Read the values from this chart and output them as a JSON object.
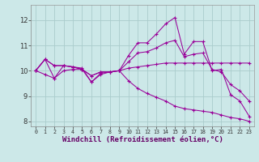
{
  "background_color": "#cce8e8",
  "grid_color": "#aacccc",
  "line_color": "#990099",
  "xlabel": "Windchill (Refroidissement éolien,°C)",
  "xlabel_fontsize": 6.5,
  "xlim": [
    -0.5,
    23.5
  ],
  "ylim": [
    7.8,
    12.6
  ],
  "yticks": [
    8,
    9,
    10,
    11,
    12
  ],
  "xticks": [
    0,
    1,
    2,
    3,
    4,
    5,
    6,
    7,
    8,
    9,
    10,
    11,
    12,
    13,
    14,
    15,
    16,
    17,
    18,
    19,
    20,
    21,
    22,
    23
  ],
  "series": [
    [
      10.0,
      10.45,
      9.7,
      10.2,
      10.15,
      10.1,
      9.55,
      9.9,
      9.95,
      10.0,
      10.6,
      11.1,
      11.1,
      11.45,
      11.85,
      12.1,
      10.65,
      11.15,
      11.15,
      10.0,
      10.05,
      9.05,
      8.8,
      8.2
    ],
    [
      10.0,
      10.45,
      10.2,
      10.2,
      10.15,
      10.05,
      9.8,
      9.95,
      9.95,
      10.0,
      10.1,
      10.15,
      10.2,
      10.25,
      10.3,
      10.3,
      10.3,
      10.3,
      10.3,
      10.3,
      10.3,
      10.3,
      10.3,
      10.3
    ],
    [
      10.0,
      10.45,
      10.2,
      10.2,
      10.15,
      10.05,
      9.8,
      9.95,
      9.95,
      10.0,
      10.35,
      10.7,
      10.75,
      10.9,
      11.1,
      11.2,
      10.55,
      10.65,
      10.7,
      10.05,
      9.95,
      9.45,
      9.2,
      8.8
    ],
    [
      10.0,
      9.85,
      9.7,
      10.0,
      10.05,
      10.05,
      9.55,
      9.85,
      9.95,
      10.0,
      9.6,
      9.3,
      9.1,
      8.95,
      8.8,
      8.6,
      8.5,
      8.45,
      8.4,
      8.35,
      8.25,
      8.15,
      8.1,
      8.0
    ]
  ]
}
